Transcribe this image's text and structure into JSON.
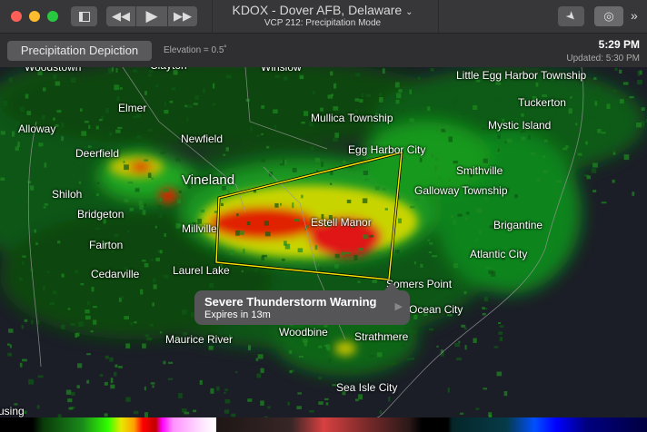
{
  "window": {
    "title": "KDOX - Dover AFB, Delaware",
    "subtitle": "VCP 212: Precipitation Mode"
  },
  "toolbar": {
    "product_button": "Precipitation Depiction",
    "elevation": "Elevation = 0.5˚",
    "time": "5:29 PM",
    "updated": "Updated: 5:30 PM"
  },
  "icons": {
    "sidebar": "sidebar-icon",
    "rewind": "rewind-icon",
    "play": "play-icon",
    "forward": "fast-forward-icon",
    "location": "location-arrow-icon",
    "radar": "radar-icon",
    "overflow": "chevron-double-right-icon"
  },
  "warning": {
    "title": "Severe Thunderstorm Warning",
    "expires": "Expires in 13m",
    "color": "#f5e400"
  },
  "places": [
    "Woodstown",
    "Clayton",
    "Winslow",
    "Little Egg Harbor Township",
    "Alloway",
    "Elmer",
    "Tuckerton",
    "Mullica Township",
    "Mystic Island",
    "Deerfield",
    "Newfield",
    "Egg Harbor City",
    "Smithville",
    "Vineland",
    "Shiloh",
    "Galloway Township",
    "Bridgeton",
    "Estell Manor",
    "Brigantine",
    "Millville",
    "Fairton",
    "Atlantic City",
    "Cedarville",
    "Laurel Lake",
    "Somers Point",
    "Ocean City",
    "Maurice River",
    "Woodbine",
    "Strathmere",
    "Sea Isle City",
    "using"
  ]
}
